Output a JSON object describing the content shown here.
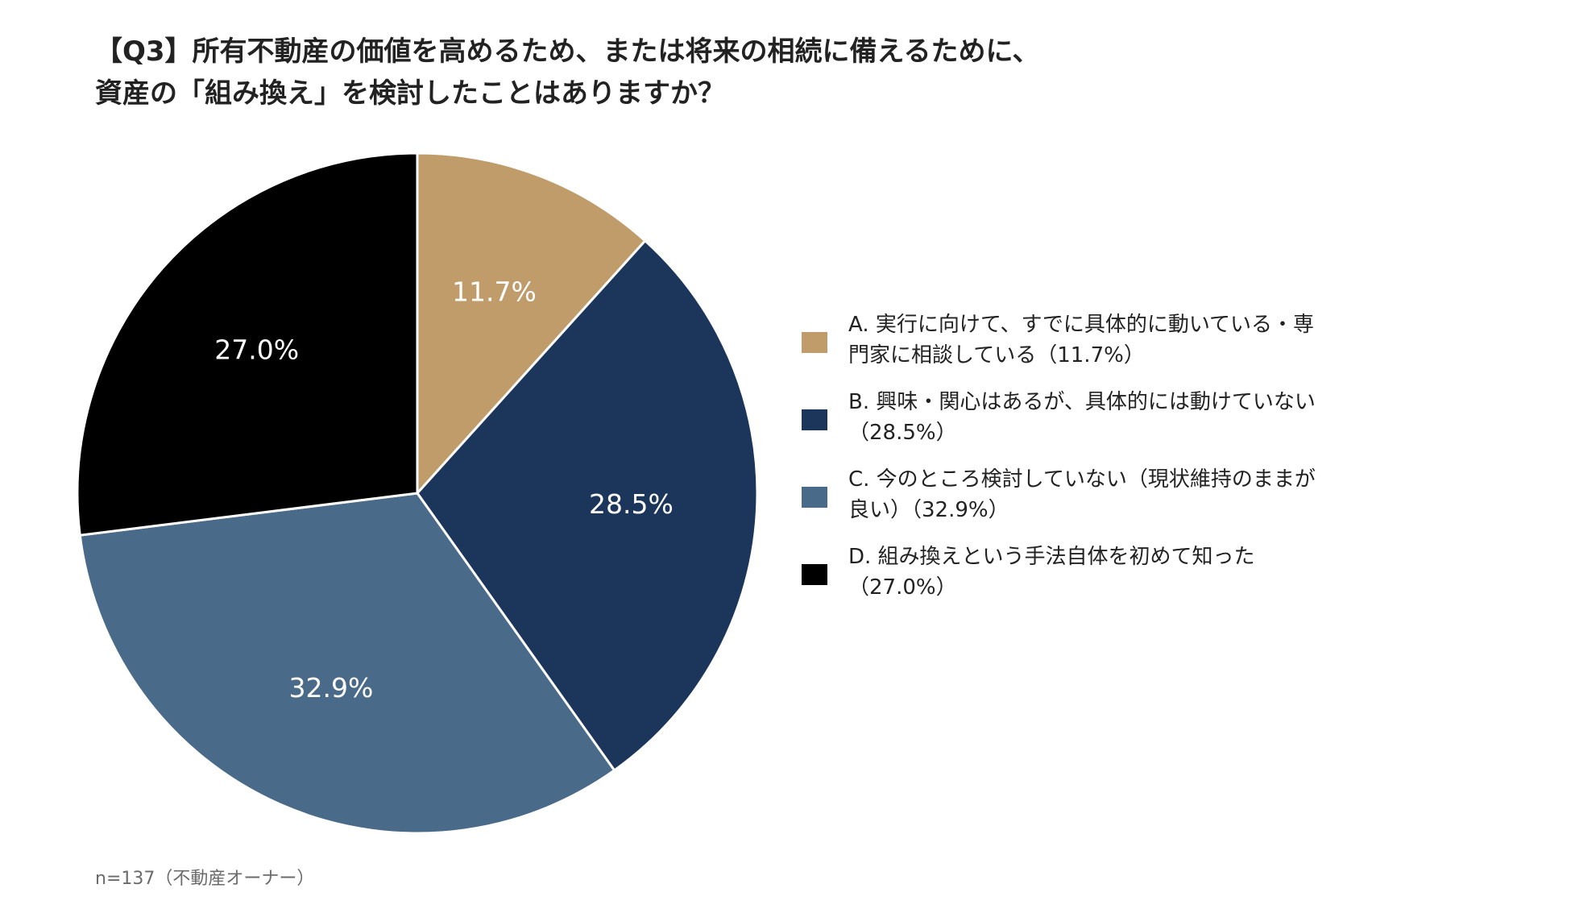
{
  "title": {
    "line1": "【Q3】所有不動産の価値を高めるため、または将来の相続に備えるために、",
    "line2": "資産の「組み換え」を検討したことはありますか？"
  },
  "legend": [
    {
      "line1": "A. 実行に向けて、すでに具体的に動いている・専",
      "line2": "門家に相談している（11.7%）",
      "color": "#c09c6b"
    },
    {
      "line1": "B. 興味・関心はあるが、具体的には動けていない",
      "line2": "（28.5%）",
      "color": "#1c355b"
    },
    {
      "line1": "C. 今のところ検討していない（現状維持のままが",
      "line2": "良い）（32.9%）",
      "color": "#4a6a89"
    },
    {
      "line1": "D. 組み換えという手法自体を初めて知った",
      "line2": "（27.0%）",
      "color": "#000000"
    }
  ],
  "note": "n=137（不動産オーナー）",
  "chart_data": {
    "type": "pie",
    "title": "【Q3】所有不動産の価値を高めるため、または将来の相続に備えるために、資産の「組み換え」を検討したことはありますか？",
    "unit": "%",
    "start": "12 o'clock, clockwise",
    "slices": [
      {
        "name": "A. 実行に向けて、すでに具体的に動いている・専門家に相談している",
        "value": 11.7,
        "label": "11.7%",
        "color": "#c09c6b"
      },
      {
        "name": "B. 興味・関心はあるが、具体的には動けていない",
        "value": 28.5,
        "label": "28.5%",
        "color": "#1c355b"
      },
      {
        "name": "C. 今のところ検討していない（現状維持のままが良い）",
        "value": 32.9,
        "label": "32.9%",
        "color": "#4a6a89"
      },
      {
        "name": "D. 組み換えという手法自体を初めて知った",
        "value": 27.0,
        "label": "27.0%",
        "color": "#000000"
      }
    ]
  }
}
